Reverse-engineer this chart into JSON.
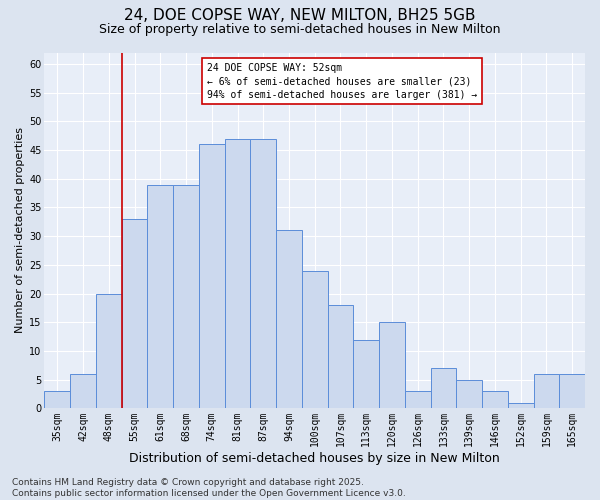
{
  "title": "24, DOE COPSE WAY, NEW MILTON, BH25 5GB",
  "subtitle": "Size of property relative to semi-detached houses in New Milton",
  "xlabel": "Distribution of semi-detached houses by size in New Milton",
  "ylabel": "Number of semi-detached properties",
  "categories": [
    "35sqm",
    "42sqm",
    "48sqm",
    "55sqm",
    "61sqm",
    "68sqm",
    "74sqm",
    "81sqm",
    "87sqm",
    "94sqm",
    "100sqm",
    "107sqm",
    "113sqm",
    "120sqm",
    "126sqm",
    "133sqm",
    "139sqm",
    "146sqm",
    "152sqm",
    "159sqm",
    "165sqm"
  ],
  "values": [
    3,
    6,
    20,
    33,
    39,
    39,
    46,
    47,
    47,
    31,
    24,
    18,
    12,
    15,
    3,
    7,
    5,
    3,
    1,
    6,
    6
  ],
  "bar_color": "#ccd9ee",
  "bar_edge_color": "#5b8dd9",
  "annotation_text": "24 DOE COPSE WAY: 52sqm\n← 6% of semi-detached houses are smaller (23)\n94% of semi-detached houses are larger (381) →",
  "annotation_box_color": "#ffffff",
  "annotation_border_color": "#cc0000",
  "vline_color": "#cc0000",
  "vline_x": 2.5,
  "ylim": [
    0,
    62
  ],
  "yticks": [
    0,
    5,
    10,
    15,
    20,
    25,
    30,
    35,
    40,
    45,
    50,
    55,
    60
  ],
  "background_color": "#dce4f0",
  "plot_background_color": "#e8eef8",
  "grid_color": "#ffffff",
  "footer": "Contains HM Land Registry data © Crown copyright and database right 2025.\nContains public sector information licensed under the Open Government Licence v3.0.",
  "title_fontsize": 11,
  "subtitle_fontsize": 9,
  "xlabel_fontsize": 9,
  "ylabel_fontsize": 8,
  "tick_fontsize": 7,
  "annotation_fontsize": 7,
  "footer_fontsize": 6.5
}
